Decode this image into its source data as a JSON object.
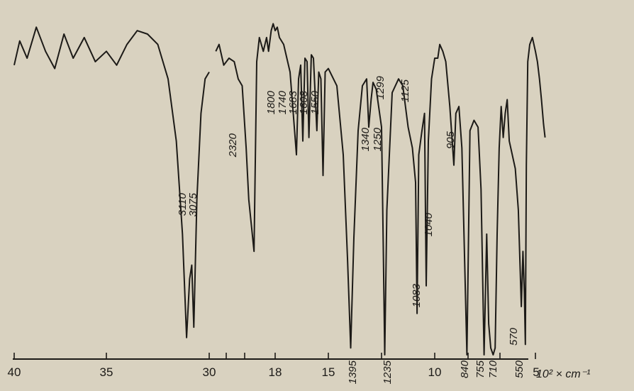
{
  "colors": {
    "ink": "#1c1a17",
    "paper": "#d9d2c0"
  },
  "chart_data": {
    "type": "line",
    "xlabel": "10² × cm⁻¹",
    "x_axis_ticks": [
      "40",
      "35",
      "30",
      "25",
      "20",
      "18",
      "15",
      "12",
      "10",
      "8",
      "6",
      "5"
    ],
    "x_axis_tick_labels": [
      "40",
      "35",
      "30",
      "18",
      "15",
      "10",
      "5"
    ],
    "peak_labels": [
      "3110",
      "3075",
      "2320",
      "1800",
      "1740",
      "1683",
      "1608",
      "1550",
      "1395",
      "1340",
      "1299",
      "1250",
      "1235",
      "1125",
      "1083",
      "1040",
      "905",
      "840",
      "755",
      "710",
      "570",
      "550"
    ],
    "series": [
      {
        "points": [
          [
            4000,
            0.84
          ],
          [
            3970,
            0.91
          ],
          [
            3930,
            0.86
          ],
          [
            3880,
            0.95
          ],
          [
            3830,
            0.88
          ],
          [
            3780,
            0.83
          ],
          [
            3730,
            0.93
          ],
          [
            3680,
            0.86
          ],
          [
            3620,
            0.92
          ],
          [
            3560,
            0.85
          ],
          [
            3500,
            0.88
          ],
          [
            3450,
            0.84
          ],
          [
            3400,
            0.9
          ],
          [
            3350,
            0.94
          ],
          [
            3300,
            0.93
          ],
          [
            3250,
            0.9
          ],
          [
            3200,
            0.8
          ],
          [
            3160,
            0.62
          ],
          [
            3130,
            0.35
          ],
          [
            3110,
            0.05
          ],
          [
            3095,
            0.22
          ],
          [
            3085,
            0.26
          ],
          [
            3075,
            0.08
          ],
          [
            3060,
            0.45
          ],
          [
            3040,
            0.7
          ],
          [
            3020,
            0.8
          ],
          [
            3000,
            0.82
          ],
          [
            2900,
            0.88
          ],
          [
            2850,
            0.9
          ],
          [
            2780,
            0.84
          ],
          [
            2700,
            0.86
          ],
          [
            2620,
            0.85
          ],
          [
            2560,
            0.8
          ],
          [
            2500,
            0.78
          ],
          [
            2440,
            0.6
          ],
          [
            2400,
            0.45
          ],
          [
            2320,
            0.3
          ],
          [
            2280,
            0.85
          ],
          [
            2240,
            0.92
          ],
          [
            2180,
            0.88
          ],
          [
            2130,
            0.92
          ],
          [
            2100,
            0.88
          ],
          [
            2060,
            0.94
          ],
          [
            2030,
            0.96
          ],
          [
            2000,
            0.94
          ],
          [
            1980,
            0.95
          ],
          [
            1960,
            0.92
          ],
          [
            1920,
            0.9
          ],
          [
            1860,
            0.82
          ],
          [
            1800,
            0.58
          ],
          [
            1780,
            0.8
          ],
          [
            1760,
            0.84
          ],
          [
            1740,
            0.62
          ],
          [
            1720,
            0.86
          ],
          [
            1700,
            0.85
          ],
          [
            1683,
            0.63
          ],
          [
            1660,
            0.87
          ],
          [
            1640,
            0.86
          ],
          [
            1608,
            0.65
          ],
          [
            1590,
            0.82
          ],
          [
            1570,
            0.8
          ],
          [
            1550,
            0.52
          ],
          [
            1530,
            0.82
          ],
          [
            1500,
            0.83
          ],
          [
            1460,
            0.78
          ],
          [
            1430,
            0.58
          ],
          [
            1410,
            0.28
          ],
          [
            1395,
            0.02
          ],
          [
            1380,
            0.34
          ],
          [
            1360,
            0.65
          ],
          [
            1340,
            0.78
          ],
          [
            1320,
            0.8
          ],
          [
            1310,
            0.66
          ],
          [
            1299,
            0.74
          ],
          [
            1290,
            0.79
          ],
          [
            1275,
            0.77
          ],
          [
            1250,
            0.66
          ],
          [
            1242,
            0.32
          ],
          [
            1235,
            0.0
          ],
          [
            1225,
            0.42
          ],
          [
            1200,
            0.76
          ],
          [
            1170,
            0.8
          ],
          [
            1150,
            0.78
          ],
          [
            1125,
            0.66
          ],
          [
            1105,
            0.6
          ],
          [
            1090,
            0.5
          ],
          [
            1083,
            0.12
          ],
          [
            1075,
            0.58
          ],
          [
            1060,
            0.65
          ],
          [
            1048,
            0.7
          ],
          [
            1040,
            0.2
          ],
          [
            1030,
            0.62
          ],
          [
            1015,
            0.8
          ],
          [
            1000,
            0.86
          ],
          [
            985,
            0.86
          ],
          [
            975,
            0.9
          ],
          [
            960,
            0.88
          ],
          [
            945,
            0.85
          ],
          [
            925,
            0.72
          ],
          [
            905,
            0.55
          ],
          [
            895,
            0.7
          ],
          [
            880,
            0.72
          ],
          [
            865,
            0.6
          ],
          [
            840,
            0.0
          ],
          [
            825,
            0.65
          ],
          [
            805,
            0.68
          ],
          [
            785,
            0.66
          ],
          [
            770,
            0.48
          ],
          [
            755,
            0.0
          ],
          [
            742,
            0.35
          ],
          [
            732,
            0.09
          ],
          [
            722,
            0.02
          ],
          [
            710,
            0.0
          ],
          [
            700,
            0.02
          ],
          [
            690,
            0.35
          ],
          [
            680,
            0.6
          ],
          [
            670,
            0.72
          ],
          [
            660,
            0.63
          ],
          [
            650,
            0.7
          ],
          [
            640,
            0.74
          ],
          [
            630,
            0.62
          ],
          [
            600,
            0.54
          ],
          [
            585,
            0.42
          ],
          [
            570,
            0.14
          ],
          [
            562,
            0.3
          ],
          [
            555,
            0.18
          ],
          [
            550,
            0.03
          ],
          [
            545,
            0.55
          ],
          [
            538,
            0.85
          ],
          [
            528,
            0.9
          ],
          [
            515,
            0.92
          ],
          [
            500,
            0.88
          ],
          [
            490,
            0.85
          ],
          [
            480,
            0.8
          ],
          [
            470,
            0.74
          ],
          [
            460,
            0.67
          ],
          [
            452,
            0.63
          ]
        ]
      }
    ]
  }
}
